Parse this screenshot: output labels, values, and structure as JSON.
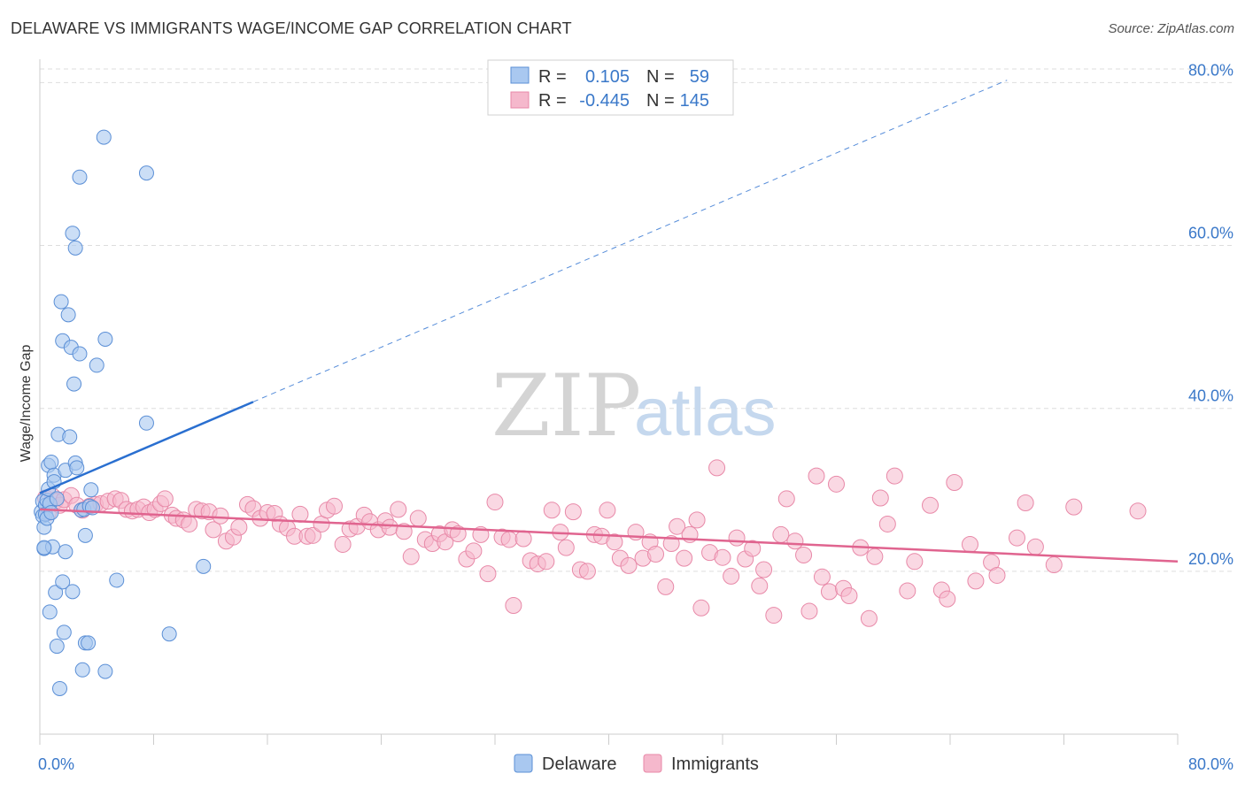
{
  "title": "DELAWARE VS IMMIGRANTS WAGE/INCOME GAP CORRELATION CHART",
  "source": "Source: ZipAtlas.com",
  "watermark": {
    "zip": "ZIP",
    "atlas": "atlas"
  },
  "legend_top": {
    "rows": [
      {
        "r_label": "R =",
        "r_value": "0.105",
        "n_label": "N =",
        "n_value": "59"
      },
      {
        "r_label": "R =",
        "r_value": "-0.445",
        "n_label": "N =",
        "n_value": "145"
      }
    ]
  },
  "colors": {
    "delaware_fill": "#a9c8f0",
    "delaware_stroke": "#5b8fd6",
    "delaware_line": "#2a6fd0",
    "immigrants_fill": "#f5b8cc",
    "immigrants_stroke": "#e889a8",
    "immigrants_line": "#e0648f",
    "axis_label": "#3a78c9",
    "grid": "#dddddd"
  },
  "chart_data": {
    "type": "scatter",
    "title": "DELAWARE VS IMMIGRANTS WAGE/INCOME GAP CORRELATION CHART",
    "xlabel": "",
    "ylabel": "Wage/Income Gap",
    "xlim": [
      0,
      80
    ],
    "ylim": [
      0,
      82
    ],
    "x_tick_labels": [
      {
        "value": 0,
        "label": "0.0%"
      },
      {
        "value": 80,
        "label": "80.0%"
      }
    ],
    "y_ticks": [
      {
        "value": 20,
        "label": "20.0%"
      },
      {
        "value": 40,
        "label": "40.0%"
      },
      {
        "value": 60,
        "label": "60.0%"
      },
      {
        "value": 80,
        "label": "80.0%"
      }
    ],
    "grid": true,
    "legend_position": "bottom-center",
    "series": [
      {
        "name": "Delaware",
        "r": 0.105,
        "n": 59,
        "trend": {
          "x_start": 0,
          "y_start": 29.6,
          "x_solid_end": 15,
          "y_solid_end": 40.8,
          "x_dash_end": 68,
          "y_dash_end": 80.3
        },
        "points": [
          [
            0.1,
            27.3
          ],
          [
            0.2,
            28.6
          ],
          [
            0.2,
            26.8
          ],
          [
            0.3,
            25.4
          ],
          [
            0.3,
            22.8
          ],
          [
            0.4,
            28.1
          ],
          [
            0.4,
            27.0
          ],
          [
            0.5,
            26.5
          ],
          [
            0.5,
            28.7
          ],
          [
            0.6,
            30.1
          ],
          [
            0.6,
            33.0
          ],
          [
            0.7,
            28.3
          ],
          [
            0.7,
            15.0
          ],
          [
            0.8,
            27.2
          ],
          [
            0.8,
            33.4
          ],
          [
            0.9,
            23.0
          ],
          [
            1.0,
            31.8
          ],
          [
            1.1,
            17.4
          ],
          [
            1.2,
            10.8
          ],
          [
            1.2,
            28.9
          ],
          [
            1.3,
            36.8
          ],
          [
            1.4,
            5.6
          ],
          [
            1.5,
            53.1
          ],
          [
            1.6,
            48.3
          ],
          [
            1.6,
            18.7
          ],
          [
            1.7,
            12.5
          ],
          [
            1.8,
            22.4
          ],
          [
            1.8,
            32.4
          ],
          [
            2.0,
            51.5
          ],
          [
            2.1,
            36.5
          ],
          [
            2.2,
            47.5
          ],
          [
            2.3,
            17.5
          ],
          [
            2.3,
            61.5
          ],
          [
            2.4,
            43.0
          ],
          [
            2.5,
            59.7
          ],
          [
            2.5,
            33.3
          ],
          [
            2.6,
            32.7
          ],
          [
            2.8,
            68.4
          ],
          [
            2.8,
            46.7
          ],
          [
            2.9,
            27.5
          ],
          [
            3.0,
            7.9
          ],
          [
            3.1,
            27.6
          ],
          [
            3.2,
            24.4
          ],
          [
            3.2,
            11.2
          ],
          [
            3.4,
            11.2
          ],
          [
            3.5,
            28.0
          ],
          [
            3.6,
            30.0
          ],
          [
            3.7,
            27.8
          ],
          [
            4.0,
            45.3
          ],
          [
            4.5,
            73.3
          ],
          [
            4.6,
            48.5
          ],
          [
            4.6,
            7.7
          ],
          [
            5.4,
            18.9
          ],
          [
            7.5,
            68.9
          ],
          [
            7.5,
            38.2
          ],
          [
            9.1,
            12.3
          ],
          [
            11.5,
            20.6
          ],
          [
            0.3,
            22.9
          ],
          [
            1.0,
            31.0
          ]
        ]
      },
      {
        "name": "Immigrants",
        "r": -0.445,
        "n": 145,
        "trend": {
          "x_start": 0,
          "y_start": 27.6,
          "x_end": 80,
          "y_end": 21.2
        },
        "points": [
          [
            0.4,
            29.0
          ],
          [
            0.6,
            27.2
          ],
          [
            0.9,
            29.2
          ],
          [
            1.1,
            28.6
          ],
          [
            1.4,
            28.1
          ],
          [
            1.7,
            28.8
          ],
          [
            2.2,
            29.3
          ],
          [
            2.6,
            28.1
          ],
          [
            3.0,
            27.5
          ],
          [
            3.5,
            28.0
          ],
          [
            3.9,
            28.2
          ],
          [
            4.3,
            28.3
          ],
          [
            4.8,
            28.6
          ],
          [
            5.3,
            28.9
          ],
          [
            5.7,
            28.7
          ],
          [
            6.1,
            27.6
          ],
          [
            6.5,
            27.4
          ],
          [
            6.9,
            27.6
          ],
          [
            7.3,
            27.9
          ],
          [
            7.7,
            27.2
          ],
          [
            8.1,
            27.6
          ],
          [
            8.5,
            28.3
          ],
          [
            8.8,
            28.9
          ],
          [
            9.3,
            26.9
          ],
          [
            9.6,
            26.5
          ],
          [
            10.1,
            26.3
          ],
          [
            10.5,
            25.8
          ],
          [
            11.0,
            27.6
          ],
          [
            11.4,
            27.4
          ],
          [
            11.9,
            27.3
          ],
          [
            12.2,
            25.1
          ],
          [
            12.7,
            26.8
          ],
          [
            13.1,
            23.7
          ],
          [
            13.6,
            24.2
          ],
          [
            14.0,
            25.4
          ],
          [
            14.6,
            28.2
          ],
          [
            15.0,
            27.7
          ],
          [
            15.5,
            26.5
          ],
          [
            16.0,
            27.2
          ],
          [
            16.5,
            27.1
          ],
          [
            16.9,
            25.8
          ],
          [
            17.4,
            25.3
          ],
          [
            17.9,
            24.3
          ],
          [
            18.3,
            27.0
          ],
          [
            18.8,
            24.3
          ],
          [
            19.2,
            24.4
          ],
          [
            19.8,
            25.8
          ],
          [
            20.2,
            27.5
          ],
          [
            20.7,
            28.0
          ],
          [
            21.3,
            23.3
          ],
          [
            21.8,
            25.2
          ],
          [
            22.3,
            25.5
          ],
          [
            22.8,
            26.9
          ],
          [
            23.2,
            26.1
          ],
          [
            23.8,
            25.1
          ],
          [
            24.3,
            26.2
          ],
          [
            24.6,
            25.4
          ],
          [
            25.2,
            27.6
          ],
          [
            25.6,
            24.9
          ],
          [
            26.1,
            21.8
          ],
          [
            26.6,
            26.5
          ],
          [
            27.1,
            23.9
          ],
          [
            27.6,
            23.4
          ],
          [
            28.1,
            24.6
          ],
          [
            28.5,
            23.6
          ],
          [
            29.0,
            25.1
          ],
          [
            29.4,
            24.6
          ],
          [
            30.0,
            21.5
          ],
          [
            30.5,
            22.5
          ],
          [
            31.0,
            24.5
          ],
          [
            31.5,
            19.7
          ],
          [
            32.0,
            28.5
          ],
          [
            32.5,
            24.2
          ],
          [
            33.0,
            23.9
          ],
          [
            33.3,
            15.8
          ],
          [
            34.0,
            24.0
          ],
          [
            34.5,
            21.3
          ],
          [
            35.0,
            20.9
          ],
          [
            35.6,
            21.2
          ],
          [
            36.0,
            27.5
          ],
          [
            36.6,
            24.8
          ],
          [
            37.0,
            22.9
          ],
          [
            37.5,
            27.3
          ],
          [
            38.0,
            20.2
          ],
          [
            38.5,
            20.0
          ],
          [
            39.0,
            24.5
          ],
          [
            39.5,
            24.3
          ],
          [
            39.9,
            27.5
          ],
          [
            40.4,
            23.6
          ],
          [
            40.8,
            21.6
          ],
          [
            41.4,
            20.7
          ],
          [
            41.9,
            24.8
          ],
          [
            42.4,
            21.6
          ],
          [
            42.9,
            23.6
          ],
          [
            43.3,
            22.1
          ],
          [
            44.0,
            18.1
          ],
          [
            44.4,
            23.4
          ],
          [
            44.8,
            25.5
          ],
          [
            45.3,
            21.6
          ],
          [
            45.7,
            24.5
          ],
          [
            46.2,
            26.3
          ],
          [
            46.5,
            15.5
          ],
          [
            47.1,
            22.3
          ],
          [
            47.6,
            32.7
          ],
          [
            48.0,
            21.7
          ],
          [
            48.6,
            19.4
          ],
          [
            49.0,
            24.1
          ],
          [
            49.6,
            21.5
          ],
          [
            50.1,
            22.8
          ],
          [
            50.6,
            18.2
          ],
          [
            50.9,
            20.2
          ],
          [
            51.6,
            14.6
          ],
          [
            52.1,
            24.5
          ],
          [
            52.5,
            28.9
          ],
          [
            53.1,
            23.7
          ],
          [
            53.7,
            22.0
          ],
          [
            54.1,
            15.1
          ],
          [
            54.6,
            31.7
          ],
          [
            55.0,
            19.3
          ],
          [
            55.5,
            17.5
          ],
          [
            56.0,
            30.7
          ],
          [
            56.5,
            17.9
          ],
          [
            56.9,
            17.0
          ],
          [
            57.7,
            22.9
          ],
          [
            58.3,
            14.2
          ],
          [
            58.7,
            21.8
          ],
          [
            59.1,
            29.0
          ],
          [
            59.6,
            25.8
          ],
          [
            60.1,
            31.7
          ],
          [
            61.0,
            17.6
          ],
          [
            61.5,
            21.2
          ],
          [
            62.6,
            28.1
          ],
          [
            63.4,
            17.7
          ],
          [
            63.8,
            16.6
          ],
          [
            64.3,
            30.9
          ],
          [
            65.4,
            23.3
          ],
          [
            65.8,
            18.8
          ],
          [
            66.9,
            21.1
          ],
          [
            67.3,
            19.5
          ],
          [
            68.7,
            24.1
          ],
          [
            69.3,
            28.4
          ],
          [
            70.0,
            23.0
          ],
          [
            71.3,
            20.8
          ],
          [
            72.7,
            27.9
          ],
          [
            77.2,
            27.4
          ]
        ]
      }
    ]
  }
}
